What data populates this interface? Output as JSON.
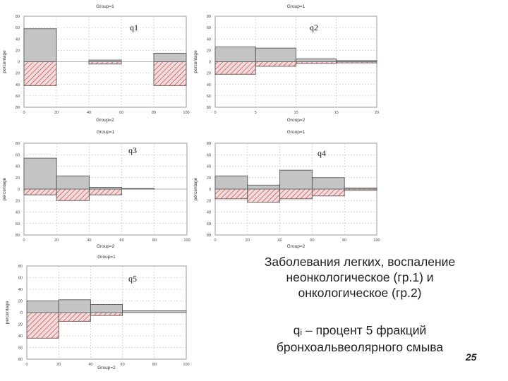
{
  "chart_data": [
    {
      "type": "bar",
      "label": "q1",
      "top_title": "Group=1",
      "bottom_title": "Group=2",
      "ylabel": "percentage",
      "xticks": [
        0,
        20,
        40,
        60,
        80,
        100
      ],
      "xlim": [
        0,
        100
      ],
      "yticks": [
        80,
        60,
        40,
        20,
        0,
        20,
        40,
        60,
        80
      ],
      "ylim": [
        -80,
        80
      ],
      "bins": [
        [
          0,
          20
        ],
        [
          40,
          60
        ],
        [
          80,
          100
        ]
      ],
      "group1": [
        58,
        3,
        15
      ],
      "group2": [
        42,
        4,
        42
      ]
    },
    {
      "type": "bar",
      "label": "q2",
      "top_title": "Group=1",
      "bottom_title": "Group=2",
      "ylabel": "percentage",
      "xticks": [
        0,
        5,
        10,
        15,
        20
      ],
      "xlim": [
        0,
        20
      ],
      "yticks": [
        80,
        60,
        40,
        20,
        0,
        20,
        40,
        60,
        80
      ],
      "ylim": [
        -80,
        80
      ],
      "bins": [
        [
          0,
          5
        ],
        [
          5,
          10
        ],
        [
          10,
          15
        ],
        [
          15,
          20
        ]
      ],
      "group1": [
        26,
        24,
        5,
        2
      ],
      "group2": [
        22,
        8,
        3,
        2
      ]
    },
    {
      "type": "bar",
      "label": "q3",
      "top_title": "Group=1",
      "bottom_title": "Group=2",
      "ylabel": "percentage",
      "xticks": [
        0,
        20,
        40,
        60,
        80,
        100
      ],
      "xlim": [
        0,
        100
      ],
      "yticks": [
        80,
        60,
        40,
        20,
        0,
        20,
        40,
        60,
        80
      ],
      "ylim": [
        -80,
        80
      ],
      "bins": [
        [
          0,
          20
        ],
        [
          20,
          40
        ],
        [
          40,
          60
        ],
        [
          60,
          80
        ]
      ],
      "group1": [
        54,
        23,
        3,
        1
      ],
      "group2": [
        10,
        20,
        10,
        0
      ]
    },
    {
      "type": "bar",
      "label": "q4",
      "top_title": "Group=1",
      "bottom_title": "Group=2",
      "ylabel": "percentage",
      "xticks": [
        0,
        20,
        40,
        60,
        80,
        100
      ],
      "xlim": [
        0,
        100
      ],
      "yticks": [
        80,
        60,
        40,
        20,
        0,
        20,
        40,
        60,
        80
      ],
      "ylim": [
        -80,
        80
      ],
      "bins": [
        [
          0,
          20
        ],
        [
          20,
          40
        ],
        [
          40,
          60
        ],
        [
          60,
          80
        ],
        [
          80,
          100
        ]
      ],
      "group1": [
        23,
        7,
        33,
        20,
        2
      ],
      "group2": [
        17,
        23,
        17,
        12,
        2
      ]
    },
    {
      "type": "bar",
      "label": "q5",
      "top_title": "Group=1",
      "bottom_title": "Group=2",
      "ylabel": "percentage",
      "xticks": [
        0,
        20,
        40,
        60,
        80,
        100
      ],
      "xlim": [
        0,
        100
      ],
      "yticks": [
        80,
        60,
        40,
        20,
        0,
        20,
        40,
        60,
        80
      ],
      "ylim": [
        -80,
        80
      ],
      "bins": [
        [
          0,
          20
        ],
        [
          20,
          40
        ],
        [
          40,
          60
        ],
        [
          60,
          100
        ]
      ],
      "group1": [
        20,
        22,
        14,
        3
      ],
      "group2": [
        44,
        15,
        5,
        0
      ]
    }
  ],
  "caption": {
    "line1": "Заболевания легких, воспаление",
    "line2": "неонкологическое (гр.1) и",
    "line3": "онкологическое (гр.2)",
    "sub_line1": "qᵢ – процент 5 фракций",
    "sub_line2": "бронхоальвеолярного смыва"
  },
  "page_number": "25",
  "colors": {
    "group1_fill": "#c4c4c4",
    "group2_hatch": "#b03a3a",
    "grid": "#bbbbbb",
    "frame": "#9a9a9a"
  }
}
